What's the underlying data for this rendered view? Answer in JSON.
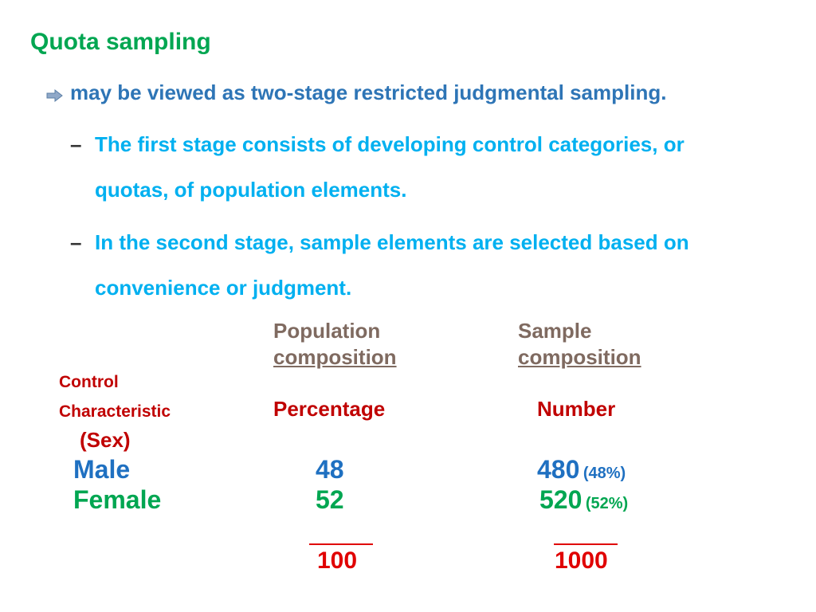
{
  "title": "Quota sampling",
  "bullet": "may be viewed as two-stage restricted judgmental sampling.",
  "sub_bullets": [
    {
      "dash": "–",
      "line1": "The first stage consists of developing control categories, or",
      "line2": "quotas, of population elements."
    },
    {
      "dash": "–",
      "line1": "In the second stage, sample elements are selected based on",
      "line2": "convenience or judgment."
    }
  ],
  "table": {
    "population_header": {
      "line1": "Population",
      "line2": "composition"
    },
    "sample_header": {
      "line1": "Sample",
      "line2": "composition"
    },
    "control_label": {
      "line1": "Control",
      "line2": "Characteristic",
      "line3": "(Sex)"
    },
    "percentage_label": "Percentage",
    "number_label": "Number",
    "rows": [
      {
        "label": "Male",
        "percentage": "48",
        "number": "480",
        "number_pct": "(48%)"
      },
      {
        "label": "Female",
        "percentage": "52",
        "number": "520",
        "number_pct": "(52%)"
      }
    ],
    "totals": {
      "percentage": "100",
      "number": "1000"
    }
  },
  "colors": {
    "title": "#00a651",
    "bullet": "#2e75b6",
    "sub_bullet": "#00b0f0",
    "header": "#7f6a60",
    "label_red": "#c00000",
    "male": "#1f70c1",
    "female": "#00a651",
    "total": "#e00000"
  },
  "icons": {
    "bullet": "arrow-right-icon"
  }
}
